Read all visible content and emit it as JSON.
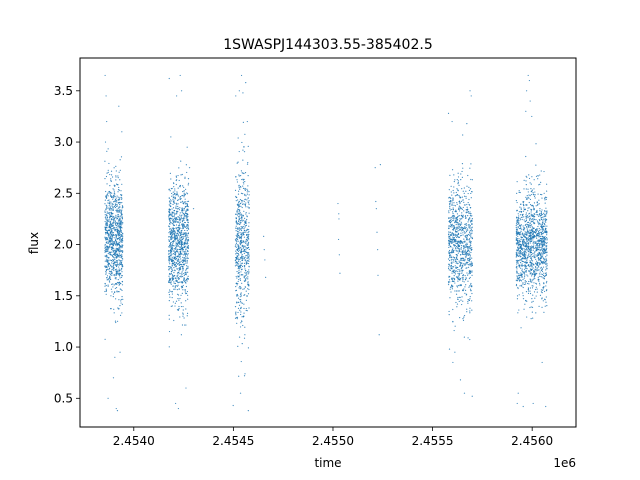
{
  "chart_data": {
    "type": "scatter",
    "title": "1SWASPJ144303.55-385402.5",
    "xlabel": "time",
    "ylabel": "flux",
    "x_offset_label": "1e6",
    "xlim": [
      2453730,
      2456220
    ],
    "ylim": [
      0.22,
      3.82
    ],
    "x_ticks": [
      2454000,
      2454500,
      2455000,
      2455500,
      2456000
    ],
    "x_tick_labels": [
      "2.4540",
      "2.4545",
      "2.4550",
      "2.4555",
      "2.4560"
    ],
    "y_ticks": [
      0.5,
      1.0,
      1.5,
      2.0,
      2.5,
      3.0,
      3.5
    ],
    "y_tick_labels": [
      "0.5",
      "1.0",
      "1.5",
      "2.0",
      "2.5",
      "3.0",
      "3.5"
    ],
    "grid": false,
    "point_color": "#1f77b4",
    "series": [
      {
        "segments": [
          {
            "x_range": [
              2453855,
              2453945
            ],
            "center": 2.05,
            "spread": 0.28,
            "count": 950
          },
          {
            "x_range": [
              2454175,
              2454275
            ],
            "center": 2.0,
            "spread": 0.3,
            "count": 1000
          },
          {
            "x_range": [
              2454510,
              2454580
            ],
            "center": 2.0,
            "spread": 0.38,
            "count": 600
          },
          {
            "x_range": [
              2455580,
              2455700
            ],
            "center": 2.0,
            "spread": 0.3,
            "count": 900
          },
          {
            "x_range": [
              2455920,
              2456075
            ],
            "center": 2.0,
            "spread": 0.26,
            "count": 1300
          }
        ],
        "extremes": [
          {
            "x": 2453856,
            "y": 3.65
          },
          {
            "x": 2453861,
            "y": 3.45
          },
          {
            "x": 2453864,
            "y": 3.2
          },
          {
            "x": 2453858,
            "y": 3.0
          },
          {
            "x": 2453871,
            "y": 0.5
          },
          {
            "x": 2453898,
            "y": 0.7
          },
          {
            "x": 2453912,
            "y": 0.4
          },
          {
            "x": 2453918,
            "y": 0.38
          },
          {
            "x": 2453905,
            "y": 0.9
          },
          {
            "x": 2453925,
            "y": 3.35
          },
          {
            "x": 2453931,
            "y": 0.95
          },
          {
            "x": 2453940,
            "y": 3.1
          },
          {
            "x": 2454178,
            "y": 3.62
          },
          {
            "x": 2454186,
            "y": 3.05
          },
          {
            "x": 2454210,
            "y": 0.45
          },
          {
            "x": 2454224,
            "y": 0.4
          },
          {
            "x": 2454233,
            "y": 3.65
          },
          {
            "x": 2454240,
            "y": 3.5
          },
          {
            "x": 2454215,
            "y": 3.45
          },
          {
            "x": 2454262,
            "y": 0.6
          },
          {
            "x": 2454268,
            "y": 2.95
          },
          {
            "x": 2454280,
            "y": 2.75
          },
          {
            "x": 2454300,
            "y": 2.35
          },
          {
            "x": 2454512,
            "y": 3.45
          },
          {
            "x": 2454530,
            "y": 3.5
          },
          {
            "x": 2454541,
            "y": 3.65
          },
          {
            "x": 2454548,
            "y": 3.48
          },
          {
            "x": 2454562,
            "y": 3.58
          },
          {
            "x": 2454570,
            "y": 3.2
          },
          {
            "x": 2454575,
            "y": 0.38
          },
          {
            "x": 2454536,
            "y": 0.55
          },
          {
            "x": 2454556,
            "y": 0.72
          },
          {
            "x": 2454499,
            "y": 0.43
          },
          {
            "x": 2454652,
            "y": 2.08
          },
          {
            "x": 2454655,
            "y": 1.95
          },
          {
            "x": 2454662,
            "y": 1.68
          },
          {
            "x": 2454658,
            "y": 1.85
          },
          {
            "x": 2455025,
            "y": 2.4
          },
          {
            "x": 2455030,
            "y": 2.25
          },
          {
            "x": 2455028,
            "y": 2.05
          },
          {
            "x": 2455032,
            "y": 1.9
          },
          {
            "x": 2455035,
            "y": 1.72
          },
          {
            "x": 2455029,
            "y": 2.3
          },
          {
            "x": 2455212,
            "y": 2.75
          },
          {
            "x": 2455215,
            "y": 2.42
          },
          {
            "x": 2455218,
            "y": 2.35
          },
          {
            "x": 2455221,
            "y": 2.12
          },
          {
            "x": 2455224,
            "y": 1.95
          },
          {
            "x": 2455226,
            "y": 1.7
          },
          {
            "x": 2455232,
            "y": 1.12
          },
          {
            "x": 2455238,
            "y": 2.78
          },
          {
            "x": 2455580,
            "y": 3.28
          },
          {
            "x": 2455585,
            "y": 0.98
          },
          {
            "x": 2455598,
            "y": 3.2
          },
          {
            "x": 2455602,
            "y": 0.85
          },
          {
            "x": 2455612,
            "y": 0.95
          },
          {
            "x": 2455640,
            "y": 0.68
          },
          {
            "x": 2455660,
            "y": 0.55
          },
          {
            "x": 2455672,
            "y": 3.18
          },
          {
            "x": 2455688,
            "y": 3.5
          },
          {
            "x": 2455694,
            "y": 3.45
          },
          {
            "x": 2455699,
            "y": 0.52
          },
          {
            "x": 2455925,
            "y": 0.45
          },
          {
            "x": 2455930,
            "y": 0.55
          },
          {
            "x": 2455955,
            "y": 0.42
          },
          {
            "x": 2455968,
            "y": 3.3
          },
          {
            "x": 2455972,
            "y": 3.5
          },
          {
            "x": 2455980,
            "y": 3.65
          },
          {
            "x": 2455986,
            "y": 3.6
          },
          {
            "x": 2455990,
            "y": 3.4
          },
          {
            "x": 2455998,
            "y": 3.25
          },
          {
            "x": 2456005,
            "y": 0.45
          },
          {
            "x": 2456050,
            "y": 0.85
          },
          {
            "x": 2456068,
            "y": 0.42
          }
        ]
      }
    ]
  }
}
